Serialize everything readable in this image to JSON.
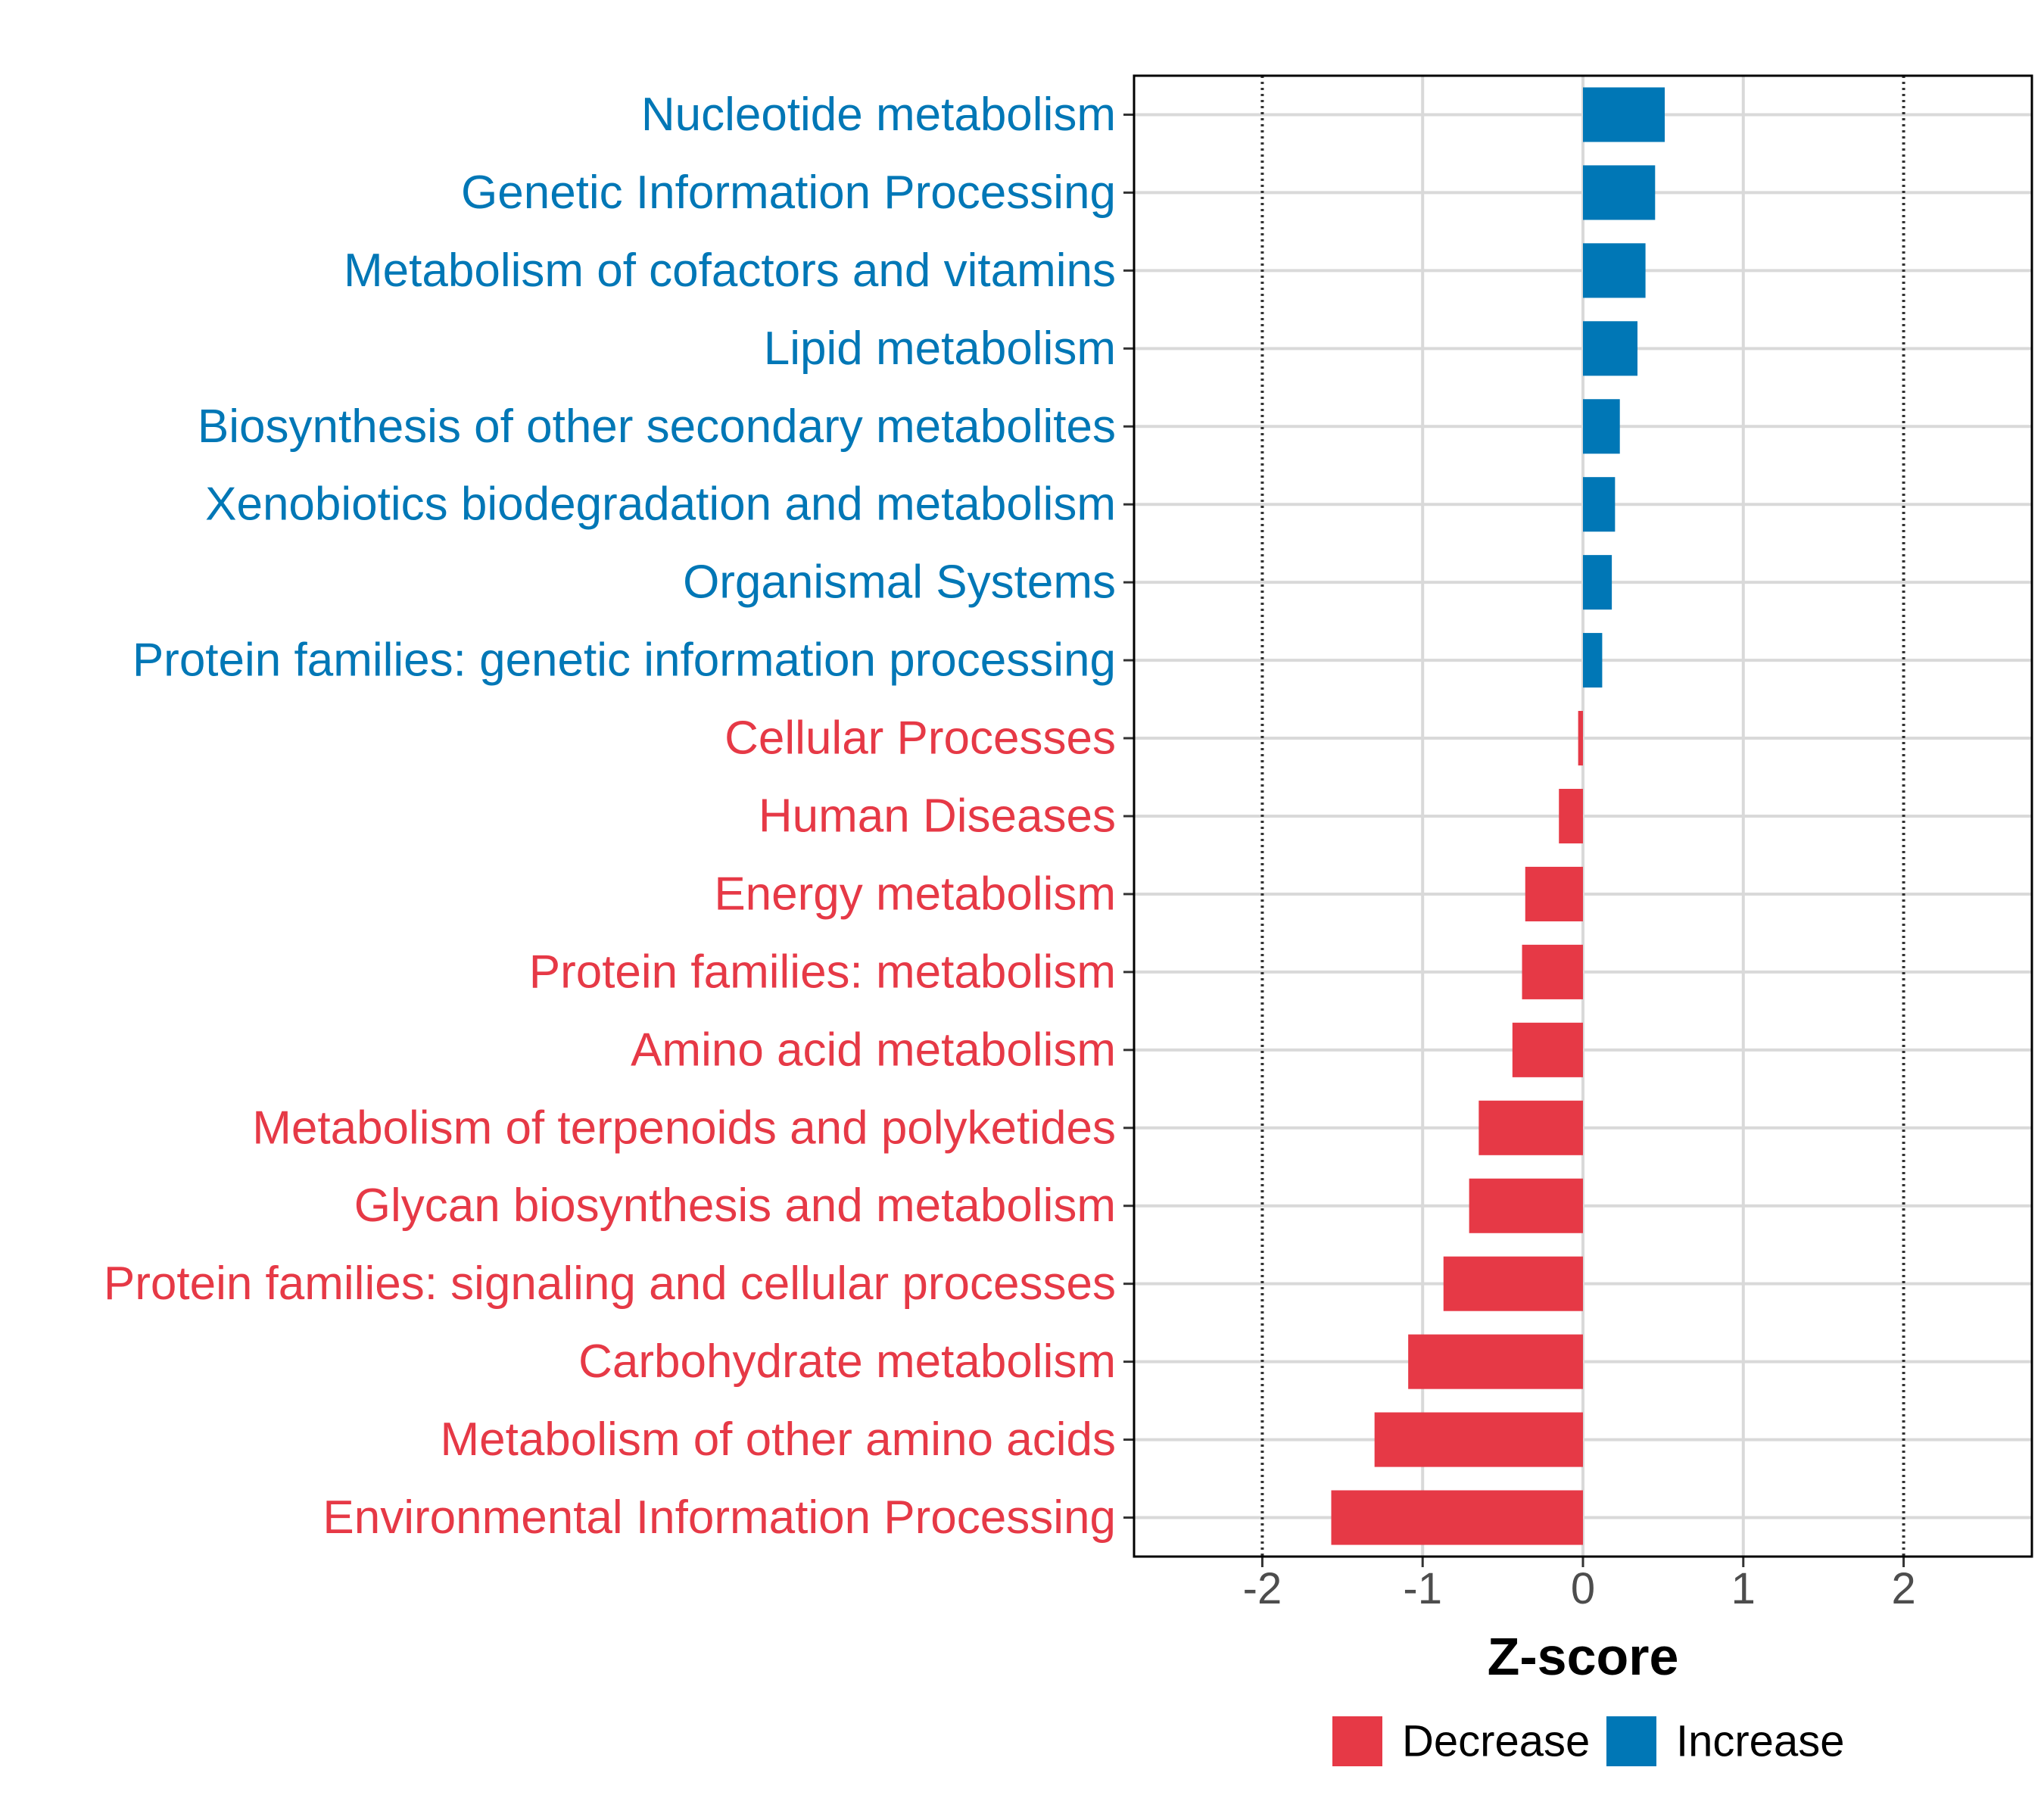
{
  "chart_data": {
    "type": "bar",
    "orientation": "horizontal",
    "xlabel": "Z-score",
    "ylabel": "",
    "xlim": [
      -2.8,
      2.8
    ],
    "xticks": [
      -2,
      -1,
      0,
      1,
      2
    ],
    "tick_labels": [
      "-2",
      "-1",
      "0",
      "1",
      "2"
    ],
    "reference_lines": [
      -2,
      2
    ],
    "grid": true,
    "colors": {
      "Decrease": "#e63946",
      "Increase": "#0077b6"
    },
    "categories": [
      "Nucleotide metabolism",
      "Genetic Information Processing",
      "Metabolism of cofactors and vitamins",
      "Lipid metabolism",
      "Biosynthesis of other secondary metabolites",
      "Xenobiotics biodegradation and metabolism",
      "Organismal Systems",
      "Protein families: genetic information processing",
      "Cellular Processes",
      "Human Diseases",
      "Energy metabolism",
      "Protein families: metabolism",
      "Amino acid metabolism",
      "Metabolism of terpenoids and polyketides",
      "Glycan biosynthesis and metabolism",
      "Protein families: signaling and cellular processes",
      "Carbohydrate metabolism",
      "Metabolism of other amino acids",
      "Environmental Information Processing"
    ],
    "values": [
      0.51,
      0.45,
      0.39,
      0.34,
      0.23,
      0.2,
      0.18,
      0.12,
      -0.03,
      -0.15,
      -0.36,
      -0.38,
      -0.44,
      -0.65,
      -0.71,
      -0.87,
      -1.09,
      -1.3,
      -1.57
    ],
    "legend": {
      "position": "bottom",
      "entries": [
        "Decrease",
        "Increase"
      ]
    }
  }
}
